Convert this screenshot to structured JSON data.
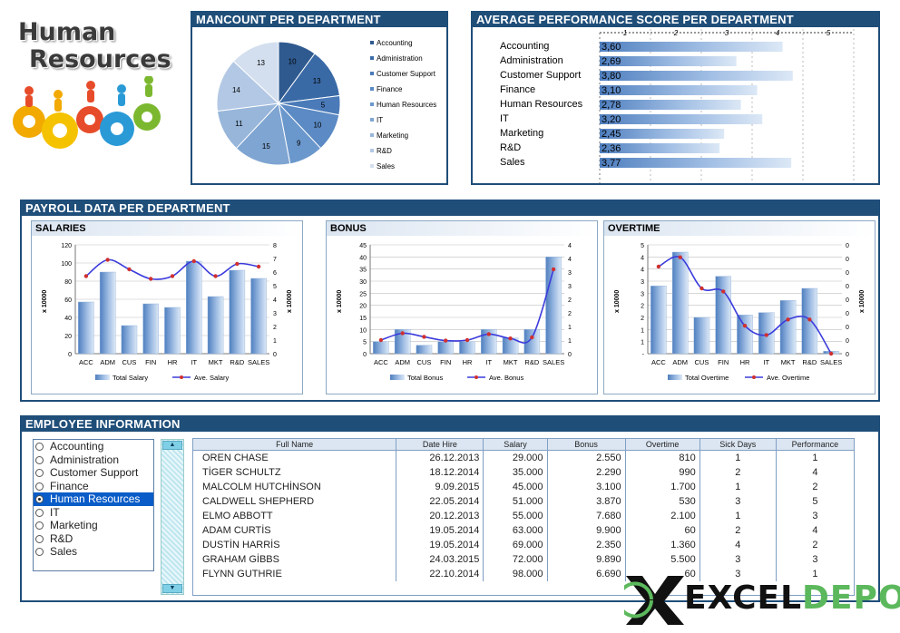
{
  "logo": {
    "line1": "Human",
    "line2": "Resources"
  },
  "headcount": {
    "title": "MANCOUNT PER DEPARTMENT",
    "chart_data": {
      "type": "pie",
      "labels": [
        "Accounting",
        "Administration",
        "Customer Support",
        "Finance",
        "Human Resources",
        "IT",
        "Marketing",
        "R&D",
        "Sales"
      ],
      "values": [
        10,
        13,
        5,
        10,
        9,
        15,
        11,
        14,
        13
      ],
      "colors": [
        "#2f5a8f",
        "#3a6aa6",
        "#4a7ab8",
        "#5b8ac4",
        "#6b98cc",
        "#7fa5d2",
        "#97b6da",
        "#b3c8e4",
        "#d3dfee"
      ]
    }
  },
  "performance": {
    "title": "AVERAGE PERFORMANCE SCORE PER DEPARTMENT",
    "chart_data": {
      "type": "bar",
      "orientation": "horizontal",
      "categories": [
        "Accounting",
        "Administration",
        "Customer Support",
        "Finance",
        "Human Resources",
        "IT",
        "Marketing",
        "R&D",
        "Sales"
      ],
      "values": [
        3.6,
        2.69,
        3.8,
        3.1,
        2.78,
        3.2,
        2.45,
        2.36,
        3.77
      ],
      "value_labels": [
        "3,60",
        "2,69",
        "3,80",
        "3,10",
        "2,78",
        "3,20",
        "2,45",
        "2,36",
        "3,77"
      ],
      "axis_ticks": [
        "1",
        "2",
        "3",
        "4",
        "5"
      ],
      "xlim": [
        0,
        5
      ]
    }
  },
  "payroll": {
    "title": "PAYROLL DATA PER DEPARTMENT",
    "salaries": {
      "title": "SALARIES",
      "chart_data": {
        "type": "bar",
        "categories": [
          "ACC",
          "ADM",
          "CUS",
          "FIN",
          "HR",
          "IT",
          "MKT",
          "R&D",
          "SALES"
        ],
        "series": [
          {
            "name": "Total Salary",
            "type": "bar",
            "values": [
              57,
              90,
              31,
              55,
              51,
              102,
              63,
              92,
              83
            ]
          },
          {
            "name": "Ave. Salary",
            "type": "line",
            "axis": "right",
            "values": [
              5.7,
              6.9,
              6.2,
              5.5,
              5.7,
              6.8,
              5.7,
              6.6,
              6.4
            ]
          }
        ],
        "ylabel": "x 10000",
        "y2label": "x 10000",
        "yticks": [
          "0",
          "20",
          "40",
          "60",
          "80",
          "100",
          "120"
        ],
        "ylim": [
          0,
          120
        ],
        "y2ticks": [
          "0",
          "1",
          "2",
          "3",
          "4",
          "5",
          "6",
          "7",
          "8"
        ],
        "y2lim": [
          0,
          8
        ]
      }
    },
    "bonus": {
      "title": "BONUS",
      "chart_data": {
        "type": "bar",
        "categories": [
          "ACC",
          "ADM",
          "CUS",
          "FIN",
          "HR",
          "IT",
          "MKT",
          "R&D",
          "SALES"
        ],
        "series": [
          {
            "name": "Total Bonus",
            "type": "bar",
            "values": [
              5,
              10,
              3.5,
              5,
              5,
              10,
              6.5,
              10,
              40
            ]
          },
          {
            "name": "Ave. Bonus",
            "type": "line",
            "axis": "right",
            "values": [
              0.5,
              0.75,
              0.62,
              0.48,
              0.5,
              0.72,
              0.56,
              0.6,
              3.1
            ]
          }
        ],
        "ylabel": "x 10000",
        "yticks": [
          "0",
          "5",
          "10",
          "15",
          "20",
          "25",
          "30",
          "35",
          "40",
          "45"
        ],
        "ylim": [
          0,
          45
        ],
        "y2ticks": [
          "0",
          "1",
          "1",
          "2",
          "2",
          "3",
          "3",
          "4",
          "4"
        ],
        "y2lim": [
          0,
          4
        ]
      }
    },
    "overtime": {
      "title": "OVERTIME",
      "chart_data": {
        "type": "bar",
        "categories": [
          "ACC",
          "ADM",
          "CUS",
          "FIN",
          "HR",
          "IT",
          "MKT",
          "R&D",
          "SALES"
        ],
        "series": [
          {
            "name": "Total Overtime",
            "type": "bar",
            "values": [
              2.8,
              4.2,
              1.5,
              3.2,
              1.6,
              1.7,
              2.2,
              2.7,
              0.1
            ]
          },
          {
            "name": "Ave. Overtime",
            "type": "line",
            "axis": "right",
            "values": [
              0.28,
              0.31,
              0.21,
              0.2,
              0.09,
              0.06,
              0.11,
              0.11,
              0.0
            ]
          }
        ],
        "ylabel": "x 10000",
        "y2label": "x 10000",
        "yticks": [
          "-",
          "1",
          "1",
          "2",
          "2",
          "3",
          "3",
          "4",
          "4",
          "5"
        ],
        "ylim": [
          0,
          4.5
        ],
        "y2ticks": [
          "0",
          "0",
          "0",
          "0",
          "0",
          "0",
          "0",
          "0",
          "0"
        ],
        "y2lim": [
          0,
          0.35
        ]
      }
    }
  },
  "employee": {
    "title": "EMPLOYEE INFORMATION",
    "departments": [
      "Accounting",
      "Administration",
      "Customer Support",
      "Finance",
      "Human Resources",
      "IT",
      "Marketing",
      "R&D",
      "Sales"
    ],
    "selected_index": 4,
    "columns": [
      "Full Name",
      "Date Hire",
      "Salary",
      "Bonus",
      "Overtime",
      "Sick Days",
      "Performance"
    ],
    "rows": [
      [
        "OREN CHASE",
        "26.12.2013",
        "29.000",
        "2.550",
        "810",
        "1",
        "1"
      ],
      [
        "TİGER SCHULTZ",
        "18.12.2014",
        "35.000",
        "2.290",
        "990",
        "2",
        "4"
      ],
      [
        "MALCOLM HUTCHİNSON",
        "9.09.2015",
        "45.000",
        "3.100",
        "1.700",
        "1",
        "2"
      ],
      [
        "CALDWELL SHEPHERD",
        "22.05.2014",
        "51.000",
        "3.870",
        "530",
        "3",
        "5"
      ],
      [
        "ELMO ABBOTT",
        "20.12.2013",
        "55.000",
        "7.680",
        "2.100",
        "1",
        "3"
      ],
      [
        "ADAM CURTİS",
        "19.05.2014",
        "63.000",
        "9.900",
        "60",
        "2",
        "4"
      ],
      [
        "DUSTİN HARRİS",
        "19.05.2014",
        "69.000",
        "2.350",
        "1.360",
        "4",
        "2"
      ],
      [
        "GRAHAM GİBBS",
        "24.03.2015",
        "72.000",
        "9.890",
        "5.500",
        "3",
        "3"
      ],
      [
        "FLYNN GUTHRIE",
        "22.10.2014",
        "98.000",
        "6.690",
        "60",
        "3",
        "1"
      ]
    ]
  },
  "brand": {
    "left": "EXCEL",
    "right": "DEPO"
  },
  "colors": {
    "panel": "#1f4e79",
    "bar": "#6f99d0",
    "line": "#3b3bdc",
    "marker": "#d03030",
    "brand_green": "#5cb85c"
  }
}
